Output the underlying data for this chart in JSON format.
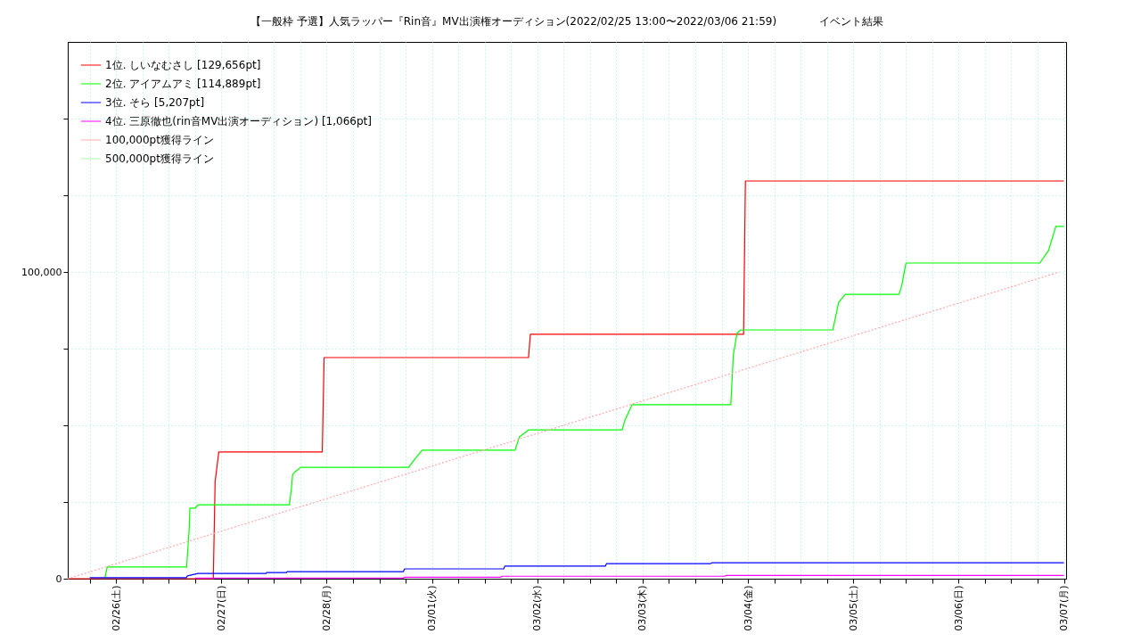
{
  "chart_data": {
    "type": "line",
    "title": "【一般枠 予選】人気ラッパー『Rin音』MV出演権オーディション(2022/02/25 13:00〜2022/03/06 21:59)　　　　イベント結果",
    "line_style": "solid",
    "grid": true,
    "legend": "top left",
    "xlim": [
      "2022-02-25T13:00",
      "2022-03-07T00:30"
    ],
    "xticks": [
      {
        "value": "2022-02-25T18:00",
        "label": null
      },
      {
        "value": "2022-02-26T00:00",
        "label": "02/26(土)"
      },
      {
        "value": "2022-02-26T06:00",
        "label": null
      },
      {
        "value": "2022-02-26T12:00",
        "label": null
      },
      {
        "value": "2022-02-26T18:00",
        "label": null
      },
      {
        "value": "2022-02-27T00:00",
        "label": "02/27(日)"
      },
      {
        "value": "2022-02-27T06:00",
        "label": null
      },
      {
        "value": "2022-02-27T12:00",
        "label": null
      },
      {
        "value": "2022-02-27T18:00",
        "label": null
      },
      {
        "value": "2022-02-28T00:00",
        "label": "02/28(月)"
      },
      {
        "value": "2022-02-28T06:00",
        "label": null
      },
      {
        "value": "2022-02-28T12:00",
        "label": null
      },
      {
        "value": "2022-02-28T18:00",
        "label": null
      },
      {
        "value": "2022-03-01T00:00",
        "label": "03/01(火)"
      },
      {
        "value": "2022-03-01T06:00",
        "label": null
      },
      {
        "value": "2022-03-01T12:00",
        "label": null
      },
      {
        "value": "2022-03-01T18:00",
        "label": null
      },
      {
        "value": "2022-03-02T00:00",
        "label": "03/02(水)"
      },
      {
        "value": "2022-03-02T06:00",
        "label": null
      },
      {
        "value": "2022-03-02T12:00",
        "label": null
      },
      {
        "value": "2022-03-02T18:00",
        "label": null
      },
      {
        "value": "2022-03-03T00:00",
        "label": "03/03(木)"
      },
      {
        "value": "2022-03-03T06:00",
        "label": null
      },
      {
        "value": "2022-03-03T12:00",
        "label": null
      },
      {
        "value": "2022-03-03T18:00",
        "label": null
      },
      {
        "value": "2022-03-04T00:00",
        "label": "03/04(金)"
      },
      {
        "value": "2022-03-04T06:00",
        "label": null
      },
      {
        "value": "2022-03-04T12:00",
        "label": null
      },
      {
        "value": "2022-03-04T18:00",
        "label": null
      },
      {
        "value": "2022-03-05T00:00",
        "label": "03/05(土)"
      },
      {
        "value": "2022-03-05T06:00",
        "label": null
      },
      {
        "value": "2022-03-05T12:00",
        "label": null
      },
      {
        "value": "2022-03-05T18:00",
        "label": null
      },
      {
        "value": "2022-03-06T00:00",
        "label": "03/06(日)"
      },
      {
        "value": "2022-03-06T06:00",
        "label": null
      },
      {
        "value": "2022-03-06T12:00",
        "label": null
      },
      {
        "value": "2022-03-06T18:00",
        "label": null
      },
      {
        "value": "2022-03-07T00:00",
        "label": "03/07(月)"
      }
    ],
    "ylim": [
      0,
      175000
    ],
    "yticks": [
      {
        "value": 0,
        "label": "0"
      },
      {
        "value": 25000,
        "label": null
      },
      {
        "value": 50000,
        "label": null
      },
      {
        "value": 75000,
        "label": null
      },
      {
        "value": 100000,
        "label": "100,000"
      },
      {
        "value": 125000,
        "label": null
      },
      {
        "value": 150000,
        "label": null
      }
    ],
    "series": [
      {
        "name": "1位. しいなむさし [129,656pt]",
        "color": "#ff0000",
        "x": [
          "2022-02-25T13:00",
          "2022-02-26T22:10",
          "2022-02-26T22:35",
          "2022-02-26T23:25",
          "2022-02-27T23:00",
          "2022-02-27T23:25",
          "2022-03-01T22:00",
          "2022-03-01T22:25",
          "2022-03-03T23:00",
          "2022-03-03T23:25",
          "2022-03-07T00:00"
        ],
        "values": [
          0,
          0,
          31700,
          41300,
          41300,
          72100,
          72100,
          79700,
          79700,
          129656,
          129656
        ]
      },
      {
        "name": "2位. アイアムアミ [114,889pt]",
        "color": "#00ff00",
        "x": [
          "2022-02-25T21:25",
          "2022-02-25T22:00",
          "2022-02-26T16:05",
          "2022-02-26T16:40",
          "2022-02-26T16:50",
          "2022-02-26T18:05",
          "2022-02-26T18:40",
          "2022-02-27T15:30",
          "2022-02-27T15:55",
          "2022-02-27T16:15",
          "2022-02-27T16:50",
          "2022-02-27T18:05",
          "2022-02-28T18:40",
          "2022-02-28T20:05",
          "2022-02-28T21:45",
          "2022-03-01T18:55",
          "2022-03-01T19:55",
          "2022-03-01T22:00",
          "2022-03-02T19:20",
          "2022-03-02T19:55",
          "2022-03-02T21:35",
          "2022-03-03T20:05",
          "2022-03-03T20:40",
          "2022-03-03T21:30",
          "2022-03-03T22:20",
          "2022-03-04T19:20",
          "2022-03-04T20:40",
          "2022-03-04T22:10",
          "2022-03-05T10:25",
          "2022-03-05T11:00",
          "2022-03-05T12:00",
          "2022-03-06T18:30",
          "2022-03-06T20:30",
          "2022-03-06T22:10",
          "2022-03-07T00:00"
        ],
        "values": [
          0,
          3800,
          3800,
          16000,
          23000,
          23000,
          24100,
          24100,
          28800,
          34000,
          34900,
          36300,
          36300,
          39000,
          41900,
          41900,
          46200,
          48500,
          48500,
          51500,
          56700,
          56700,
          73000,
          80000,
          81100,
          81100,
          90100,
          92700,
          92700,
          95300,
          102900,
          102900,
          107000,
          114889,
          114889
        ]
      },
      {
        "name": "3位. そら [5,207pt]",
        "color": "#0000ff",
        "x": [
          "2022-02-25T18:00",
          "2022-02-26T16:00",
          "2022-02-26T16:15",
          "2022-02-26T18:40",
          "2022-02-27T10:10",
          "2022-02-27T10:20",
          "2022-02-27T14:50",
          "2022-02-27T15:00",
          "2022-02-28T17:30",
          "2022-02-28T17:45",
          "2022-03-01T16:20",
          "2022-03-01T16:35",
          "2022-03-02T15:30",
          "2022-03-02T15:45",
          "2022-03-03T15:30",
          "2022-03-03T15:45",
          "2022-03-07T00:00"
        ],
        "values": [
          300,
          300,
          900,
          1700,
          1700,
          2000,
          2000,
          2300,
          2300,
          3200,
          3200,
          4100,
          4100,
          4900,
          4900,
          5207,
          5207
        ]
      },
      {
        "name": "4位. 三原徹也(rin音MV出演オーディション) [1,066pt]",
        "color": "#ff00ff",
        "x": [
          "2022-02-26T18:00",
          "2022-02-28T17:30",
          "2022-02-28T17:45",
          "2022-03-01T15:40",
          "2022-03-01T16:00",
          "2022-03-03T18:40",
          "2022-03-03T19:00",
          "2022-03-07T00:00"
        ],
        "values": [
          200,
          200,
          500,
          500,
          800,
          800,
          1066,
          1066
        ]
      },
      {
        "name": "100,000pt獲得ライン",
        "color": "#ffaaaa",
        "line_style": "dotted",
        "x": [
          "2022-02-25T13:00",
          "2022-03-06T23:00"
        ],
        "values": [
          0,
          100000
        ]
      },
      {
        "name": "500,000pt獲得ライン",
        "color": "#aaffaa",
        "line_style": "dotted"
      }
    ]
  }
}
